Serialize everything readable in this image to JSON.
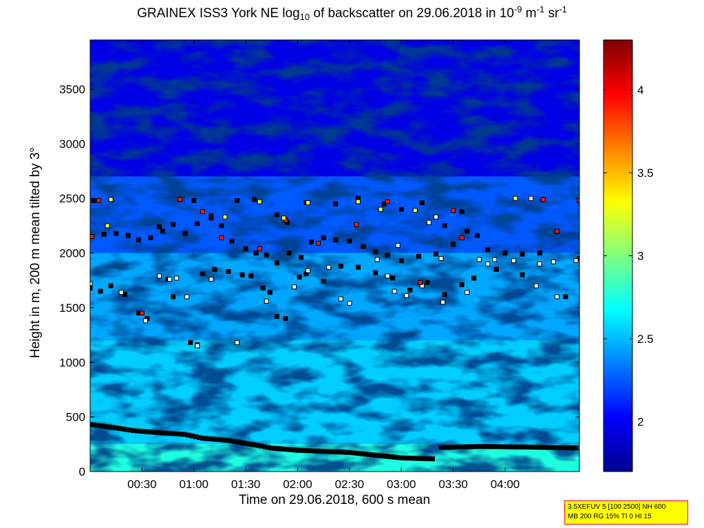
{
  "title": {
    "prefix": "GRAINEX ISS3 York NE log",
    "sub": "10",
    "middle": " of backscatter on 29.06.2018 in 10",
    "sup1": "-9",
    "unit1": " m",
    "sup2": "-1",
    "unit2": " sr",
    "sup3": "-1"
  },
  "info_box": {
    "line1": "3.5XEFUV 5 [100 2500] NH 600",
    "line2": "MB 200 RG 15% TI 0 HI 15"
  },
  "colors": {
    "colormap": [
      "#00008f",
      "#0000ff",
      "#0080ff",
      "#00ffff",
      "#80ff80",
      "#ffff00",
      "#ff8000",
      "#ff0000",
      "#800000"
    ],
    "layer_marker": "#000000",
    "marker_white": "#ffffff",
    "marker_red": "#ff1a00",
    "marker_yellow": "#ffff33"
  },
  "chart_data": {
    "type": "heatmap",
    "xlabel": "Time on 29.06.2018, 600 s mean",
    "ylabel": "Height in m, 200 m mean tilted by 3°",
    "x_ticks": [
      "00:30",
      "01:00",
      "01:30",
      "02:00",
      "02:30",
      "03:00",
      "03:30",
      "04:00"
    ],
    "x_tick_minutes": [
      30,
      60,
      90,
      120,
      150,
      180,
      210,
      240
    ],
    "xlim_minutes": [
      0,
      283
    ],
    "y_ticks": [
      0,
      500,
      1000,
      1500,
      2000,
      2500,
      3000,
      3500
    ],
    "ylim": [
      0,
      3950
    ],
    "colorbar": {
      "ticks": [
        2,
        2.5,
        3,
        3.5,
        4
      ],
      "range": [
        1.7,
        4.3
      ]
    },
    "field_zones": [
      {
        "from_height": 0,
        "to_height": 250,
        "value": 2.75
      },
      {
        "from_height": 250,
        "to_height": 1200,
        "value": 2.55
      },
      {
        "from_height": 1200,
        "to_height": 2000,
        "value": 2.45
      },
      {
        "from_height": 2000,
        "to_height": 2700,
        "value": 2.25
      },
      {
        "from_height": 2700,
        "to_height": 3950,
        "value": 1.95
      }
    ],
    "series": [
      {
        "name": "",
        "style": "boundary-layer",
        "points": [
          [
            0,
            430
          ],
          [
            15,
            400
          ],
          [
            25,
            375
          ],
          [
            40,
            355
          ],
          [
            55,
            340
          ],
          [
            65,
            305
          ],
          [
            80,
            285
          ],
          [
            95,
            245
          ],
          [
            105,
            215
          ],
          [
            120,
            195
          ],
          [
            135,
            185
          ],
          [
            150,
            175
          ],
          [
            165,
            150
          ],
          [
            180,
            125
          ],
          [
            200,
            115
          ],
          [
            203,
            220
          ],
          [
            225,
            230
          ],
          [
            250,
            225
          ],
          [
            283,
            215
          ]
        ]
      },
      {
        "name": "",
        "style": "upper-layers",
        "points": [
          [
            0,
            2150
          ],
          [
            8,
            2170
          ],
          [
            15,
            2180
          ],
          [
            22,
            2160
          ],
          [
            28,
            2120
          ],
          [
            35,
            2140
          ],
          [
            42,
            2200
          ],
          [
            48,
            2260
          ],
          [
            55,
            2180
          ],
          [
            62,
            2270
          ],
          [
            70,
            2320
          ],
          [
            76,
            2250
          ],
          [
            82,
            2110
          ],
          [
            90,
            2040
          ],
          [
            96,
            2000
          ],
          [
            102,
            1980
          ],
          [
            108,
            1910
          ],
          [
            115,
            2000
          ],
          [
            122,
            1960
          ],
          [
            128,
            2100
          ],
          [
            135,
            2140
          ],
          [
            142,
            2120
          ],
          [
            150,
            2110
          ],
          [
            158,
            2060
          ],
          [
            165,
            2010
          ],
          [
            172,
            1980
          ],
          [
            180,
            1930
          ],
          [
            190,
            1970
          ],
          [
            200,
            1990
          ],
          [
            210,
            2080
          ],
          [
            218,
            2200
          ],
          [
            224,
            2160
          ],
          [
            230,
            2030
          ],
          [
            240,
            2000
          ],
          [
            250,
            1990
          ],
          [
            260,
            2000
          ],
          [
            283,
            1950
          ],
          [
            0,
            1680
          ],
          [
            6,
            1650
          ],
          [
            12,
            1700
          ],
          [
            20,
            1620
          ],
          [
            28,
            1450
          ],
          [
            33,
            1400
          ],
          [
            45,
            1760
          ],
          [
            48,
            1600
          ],
          [
            58,
            1180
          ],
          [
            62,
            1160
          ],
          [
            65,
            1810
          ],
          [
            72,
            1850
          ],
          [
            80,
            1830
          ],
          [
            88,
            1800
          ],
          [
            93,
            1790
          ],
          [
            100,
            1680
          ],
          [
            104,
            1640
          ],
          [
            108,
            1420
          ],
          [
            113,
            1400
          ],
          [
            121,
            1780
          ],
          [
            125,
            1810
          ],
          [
            135,
            1740
          ],
          [
            145,
            1880
          ],
          [
            155,
            1870
          ],
          [
            165,
            1820
          ],
          [
            175,
            1770
          ],
          [
            185,
            1660
          ],
          [
            195,
            1730
          ],
          [
            205,
            1620
          ],
          [
            215,
            1710
          ],
          [
            222,
            1770
          ],
          [
            235,
            1850
          ],
          [
            250,
            1800
          ],
          [
            275,
            1600
          ],
          [
            2,
            2480
          ],
          [
            12,
            2490
          ],
          [
            40,
            2240
          ],
          [
            52,
            2490
          ],
          [
            60,
            2480
          ],
          [
            70,
            2340
          ],
          [
            85,
            2480
          ],
          [
            95,
            2490
          ],
          [
            108,
            2350
          ],
          [
            114,
            2280
          ],
          [
            125,
            2460
          ],
          [
            142,
            2450
          ],
          [
            155,
            2500
          ],
          [
            170,
            2450
          ],
          [
            180,
            2400
          ],
          [
            192,
            2460
          ],
          [
            205,
            2250
          ],
          [
            215,
            2380
          ],
          [
            262,
            2490
          ],
          [
            270,
            2200
          ],
          [
            283,
            2480
          ]
        ]
      }
    ],
    "markers_red": [
      [
        1,
        2150
      ],
      [
        5,
        2480
      ],
      [
        30,
        1450
      ],
      [
        52,
        2490
      ],
      [
        65,
        2380
      ],
      [
        76,
        2140
      ],
      [
        98,
        2040
      ],
      [
        113,
        2300
      ],
      [
        132,
        2090
      ],
      [
        154,
        2260
      ],
      [
        172,
        2470
      ],
      [
        191,
        1730
      ],
      [
        210,
        2390
      ],
      [
        215,
        2140
      ],
      [
        262,
        2490
      ],
      [
        270,
        2200
      ],
      [
        283,
        2480
      ]
    ],
    "markers_yellow": [
      [
        12,
        2490
      ],
      [
        10,
        2250
      ],
      [
        78,
        2330
      ],
      [
        98,
        2470
      ],
      [
        112,
        2320
      ],
      [
        126,
        2460
      ],
      [
        155,
        2470
      ],
      [
        168,
        2400
      ],
      [
        188,
        2390
      ],
      [
        246,
        2500
      ]
    ],
    "markers_white": [
      [
        0,
        1720
      ],
      [
        18,
        1640
      ],
      [
        32,
        1380
      ],
      [
        40,
        1790
      ],
      [
        46,
        1760
      ],
      [
        50,
        1770
      ],
      [
        56,
        1600
      ],
      [
        62,
        1150
      ],
      [
        70,
        1760
      ],
      [
        85,
        1180
      ],
      [
        102,
        1560
      ],
      [
        118,
        1690
      ],
      [
        126,
        1840
      ],
      [
        138,
        1870
      ],
      [
        145,
        1580
      ],
      [
        150,
        1540
      ],
      [
        166,
        1940
      ],
      [
        172,
        1790
      ],
      [
        176,
        1650
      ],
      [
        192,
        1700
      ],
      [
        204,
        1550
      ],
      [
        218,
        1640
      ],
      [
        230,
        1900
      ],
      [
        245,
        1930
      ],
      [
        258,
        1700
      ],
      [
        270,
        1600
      ],
      [
        281,
        1930
      ],
      [
        200,
        2330
      ],
      [
        255,
        2500
      ],
      [
        178,
        2070
      ],
      [
        183,
        1610
      ],
      [
        203,
        1950
      ],
      [
        196,
        2280
      ],
      [
        234,
        1940
      ],
      [
        260,
        1900
      ],
      [
        268,
        1920
      ],
      [
        225,
        1940
      ]
    ]
  }
}
